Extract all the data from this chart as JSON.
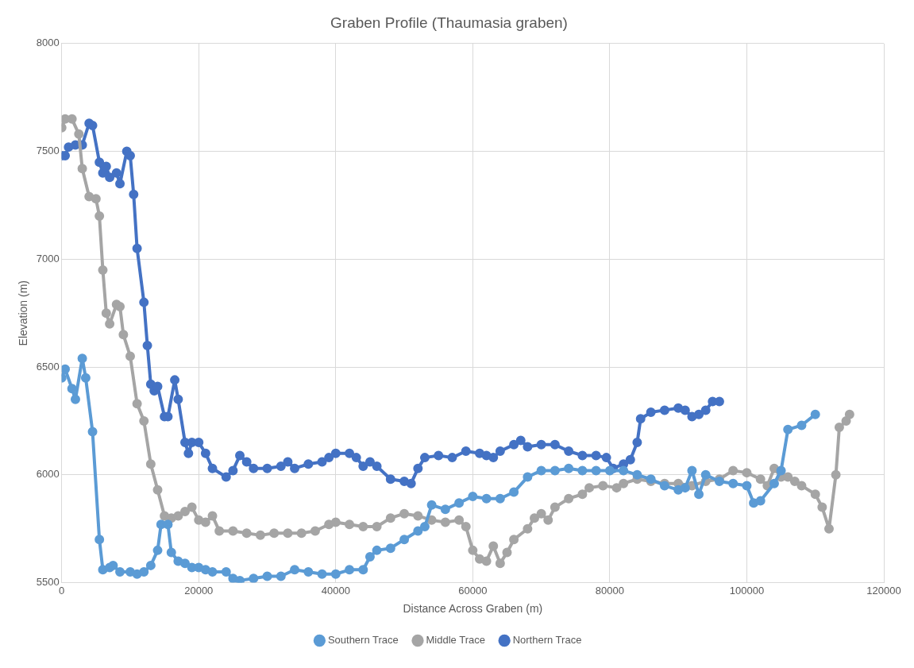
{
  "chart_data": {
    "type": "line",
    "title": "Graben Profile (Thaumasia graben)",
    "xlabel": "Distance Across Graben (m)",
    "ylabel": "Elevation (m)",
    "xlim": [
      0,
      120000
    ],
    "xticks": [
      0,
      20000,
      40000,
      60000,
      80000,
      100000,
      120000
    ],
    "ylim": [
      5500,
      8000
    ],
    "yticks": [
      5500,
      6000,
      6500,
      7000,
      7500,
      8000
    ],
    "grid": true,
    "legend": "bottom",
    "marker": "circle",
    "line_style": "solid",
    "series": [
      {
        "name": "Southern Trace",
        "color": "#5b9bd5",
        "x": [
          0,
          500,
          1500,
          2000,
          3000,
          3500,
          4500,
          5500,
          6000,
          7000,
          7500,
          8500,
          10000,
          11000,
          12000,
          13000,
          14000,
          14500,
          15500,
          16000,
          17000,
          18000,
          19000,
          20000,
          21000,
          22000,
          24000,
          25000,
          26000,
          28000,
          30000,
          32000,
          34000,
          36000,
          38000,
          40000,
          42000,
          44000,
          45000,
          46000,
          48000,
          50000,
          52000,
          53000,
          54000,
          56000,
          58000,
          60000,
          62000,
          64000,
          66000,
          68000,
          70000,
          72000,
          74000,
          76000,
          78000,
          80000,
          82000,
          84000,
          86000,
          88000,
          90000,
          91000,
          92000,
          93000,
          94000,
          96000,
          98000,
          100000,
          101000,
          102000,
          104000,
          105000,
          106000,
          108000,
          110000
        ],
        "values": [
          6450,
          6490,
          6400,
          6350,
          6540,
          6450,
          6200,
          5700,
          5560,
          5570,
          5580,
          5550,
          5550,
          5540,
          5550,
          5580,
          5650,
          5770,
          5770,
          5640,
          5600,
          5590,
          5570,
          5570,
          5560,
          5550,
          5550,
          5520,
          5510,
          5520,
          5530,
          5530,
          5560,
          5550,
          5540,
          5540,
          5560,
          5560,
          5620,
          5650,
          5660,
          5700,
          5740,
          5760,
          5860,
          5840,
          5870,
          5900,
          5890,
          5890,
          5920,
          5990,
          6020,
          6020,
          6030,
          6020,
          6020,
          6020,
          6020,
          6000,
          5980,
          5950,
          5930,
          5940,
          6020,
          5910,
          6000,
          5970,
          5960,
          5950,
          5870,
          5880,
          5960,
          6020,
          6210,
          6230,
          6280
        ]
      },
      {
        "name": "Middle Trace",
        "color": "#a5a5a5",
        "x": [
          0,
          500,
          1500,
          2500,
          3000,
          4000,
          5000,
          5500,
          6000,
          6500,
          7000,
          8000,
          8500,
          9000,
          10000,
          11000,
          12000,
          13000,
          14000,
          15000,
          16000,
          17000,
          18000,
          19000,
          20000,
          21000,
          22000,
          23000,
          25000,
          27000,
          29000,
          31000,
          33000,
          35000,
          37000,
          39000,
          40000,
          42000,
          44000,
          46000,
          48000,
          50000,
          52000,
          54000,
          56000,
          58000,
          59000,
          60000,
          61000,
          62000,
          63000,
          64000,
          65000,
          66000,
          68000,
          69000,
          70000,
          71000,
          72000,
          74000,
          76000,
          77000,
          79000,
          81000,
          82000,
          84000,
          86000,
          88000,
          90000,
          92000,
          94000,
          96000,
          98000,
          100000,
          102000,
          103000,
          104000,
          105000,
          106000,
          107000,
          108000,
          110000,
          111000,
          112000,
          113000,
          113500,
          114500,
          115000
        ],
        "values": [
          7610,
          7650,
          7650,
          7580,
          7420,
          7290,
          7280,
          7200,
          6950,
          6750,
          6700,
          6790,
          6780,
          6650,
          6550,
          6330,
          6250,
          6050,
          5930,
          5810,
          5800,
          5810,
          5830,
          5850,
          5790,
          5780,
          5810,
          5740,
          5740,
          5730,
          5720,
          5730,
          5730,
          5730,
          5740,
          5770,
          5780,
          5770,
          5760,
          5760,
          5800,
          5820,
          5810,
          5790,
          5780,
          5790,
          5760,
          5650,
          5610,
          5600,
          5670,
          5590,
          5640,
          5700,
          5750,
          5800,
          5820,
          5790,
          5850,
          5890,
          5910,
          5940,
          5950,
          5940,
          5960,
          5980,
          5970,
          5960,
          5960,
          5950,
          5970,
          5980,
          6020,
          6010,
          5980,
          5950,
          6030,
          5990,
          5990,
          5970,
          5950,
          5910,
          5850,
          5750,
          6000,
          6220,
          6250,
          6280
        ]
      },
      {
        "name": "Northern Trace",
        "color": "#4472c4",
        "x": [
          0,
          500,
          1000,
          2000,
          3000,
          4000,
          4500,
          5500,
          6000,
          6500,
          7000,
          8000,
          8500,
          9500,
          10000,
          10500,
          11000,
          12000,
          12500,
          13000,
          13500,
          14000,
          15000,
          15500,
          16500,
          17000,
          18000,
          18500,
          19000,
          20000,
          21000,
          22000,
          24000,
          25000,
          26000,
          27000,
          28000,
          30000,
          32000,
          33000,
          34000,
          36000,
          38000,
          39000,
          40000,
          42000,
          43000,
          44000,
          45000,
          46000,
          48000,
          50000,
          51000,
          52000,
          53000,
          55000,
          57000,
          59000,
          61000,
          62000,
          63000,
          64000,
          66000,
          67000,
          68000,
          70000,
          72000,
          74000,
          76000,
          78000,
          79500,
          80500,
          82000,
          83000,
          84000,
          84500,
          86000,
          88000,
          90000,
          91000,
          92000,
          93000,
          94000,
          95000,
          96000
        ],
        "values": [
          7480,
          7480,
          7520,
          7530,
          7530,
          7630,
          7620,
          7450,
          7400,
          7430,
          7380,
          7400,
          7350,
          7500,
          7480,
          7300,
          7050,
          6800,
          6600,
          6420,
          6390,
          6410,
          6270,
          6270,
          6440,
          6350,
          6150,
          6100,
          6150,
          6150,
          6100,
          6030,
          5990,
          6020,
          6090,
          6060,
          6030,
          6030,
          6040,
          6060,
          6030,
          6050,
          6060,
          6080,
          6100,
          6100,
          6080,
          6040,
          6060,
          6040,
          5980,
          5970,
          5960,
          6030,
          6080,
          6090,
          6080,
          6110,
          6100,
          6090,
          6080,
          6110,
          6140,
          6160,
          6130,
          6140,
          6140,
          6110,
          6090,
          6090,
          6080,
          6030,
          6050,
          6070,
          6150,
          6260,
          6290,
          6300,
          6310,
          6300,
          6270,
          6280,
          6300,
          6340,
          6340
        ]
      }
    ]
  }
}
